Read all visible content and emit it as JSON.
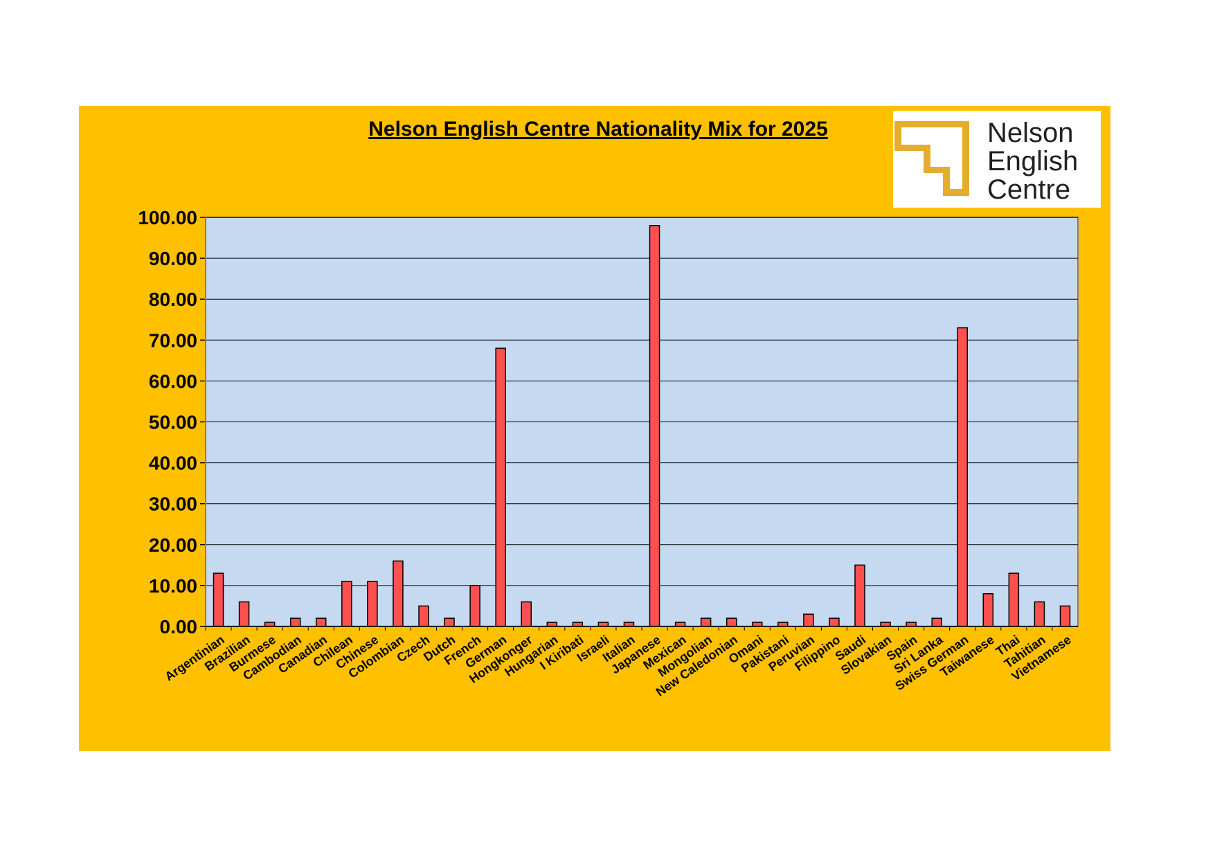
{
  "title": "Nelson English Centre Nationality Mix for 2025",
  "logo": {
    "lines": [
      "Nelson",
      "English",
      "Centre"
    ]
  },
  "colors": {
    "background_panel": "#ffc000",
    "plot_area": "#c5d9f1",
    "bar_fill": "#ff5050",
    "bar_stroke": "#000000",
    "logo_accent": "#e6ac2e"
  },
  "chart_data": {
    "type": "bar",
    "title": "Nelson English Centre Nationality Mix for 2025",
    "xlabel": "",
    "ylabel": "",
    "ylim": [
      0,
      100
    ],
    "yticks": [
      "0.00",
      "10.00",
      "20.00",
      "30.00",
      "40.00",
      "50.00",
      "60.00",
      "70.00",
      "80.00",
      "90.00",
      "100.00"
    ],
    "grid": true,
    "legend": "none",
    "categories": [
      "Argentinian",
      "Brazilian",
      "Burmese",
      "Cambodian",
      "Canadian",
      "Chilean",
      "Chinese",
      "Colombian",
      "Czech",
      "Dutch",
      "French",
      "German",
      "Hongkonger",
      "Hungarian",
      "I Kiribati",
      "Israeli",
      "Italian",
      "Japanese",
      "Mexican",
      "Mongolian",
      "New Caledonian",
      "Omani",
      "Pakistani",
      "Peruvian",
      "Filippino",
      "Saudi",
      "Slovakian",
      "Spain",
      "Sri Lanka",
      "Swiss German",
      "Taiwanese",
      "Thai",
      "Tahitian",
      "Vietnamese"
    ],
    "values": [
      13,
      6,
      1,
      2,
      2,
      11,
      11,
      16,
      5,
      2,
      10,
      68,
      6,
      1,
      1,
      1,
      1,
      98,
      1,
      2,
      2,
      1,
      1,
      3,
      2,
      15,
      1,
      1,
      2,
      73,
      8,
      13,
      6,
      5
    ]
  }
}
